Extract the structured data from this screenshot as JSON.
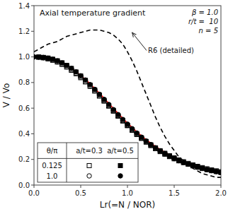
{
  "chart_data": {
    "type": "line",
    "title": "Axial temperature gradient",
    "x_label": "Lr(=N / NOR)",
    "y_label": "V / Vo",
    "xlim": [
      0.0,
      2.0
    ],
    "ylim": [
      0.0,
      1.4
    ],
    "xticks": [
      {
        "value": 0.0,
        "label": "0.0"
      },
      0.5,
      {
        "value": 1.0,
        "label": "1.0"
      },
      1.5,
      {
        "value": 2.0,
        "label": "2.0"
      }
    ],
    "yticks": [
      {
        "value": 0.0,
        "label": "0.0"
      },
      0.2,
      0.4,
      0.6,
      0.8,
      {
        "value": 1.0,
        "label": "1.0"
      },
      1.2,
      1.4
    ],
    "grid": false,
    "series": [
      {
        "type": "line",
        "color": "red",
        "line_style": "solid",
        "x": [
          0.0,
          0.05,
          0.1,
          0.15,
          0.2,
          0.25,
          0.3,
          0.35,
          0.4,
          0.45,
          0.5,
          0.55,
          0.6,
          0.65,
          0.7,
          0.75,
          0.8,
          0.85,
          0.9,
          0.95,
          1.0,
          1.05,
          1.1,
          1.15,
          1.2,
          1.25,
          1.3,
          1.35,
          1.4,
          1.45,
          1.5,
          1.55,
          1.6,
          1.65,
          1.7,
          1.75,
          1.8,
          1.85,
          1.9,
          1.95,
          2.0
        ],
        "values": [
          1.0,
          0.998,
          0.994,
          0.988,
          0.979,
          0.967,
          0.952,
          0.933,
          0.911,
          0.885,
          0.856,
          0.824,
          0.79,
          0.754,
          0.716,
          0.677,
          0.637,
          0.598,
          0.559,
          0.521,
          0.484,
          0.449,
          0.415,
          0.384,
          0.354,
          0.327,
          0.301,
          0.278,
          0.257,
          0.237,
          0.219,
          0.203,
          0.188,
          0.174,
          0.161,
          0.15,
          0.139,
          0.13,
          0.121,
          0.113,
          0.106
        ]
      },
      {
        "type": "line",
        "color": "black",
        "line_style": "dashed",
        "x": [
          0.0,
          0.05,
          0.1,
          0.15,
          0.2,
          0.25,
          0.3,
          0.35,
          0.4,
          0.45,
          0.5,
          0.55,
          0.6,
          0.65,
          0.7,
          0.75,
          0.8,
          0.85,
          0.9,
          0.95,
          1.0,
          1.05,
          1.1,
          1.15,
          1.2,
          1.25,
          1.3,
          1.35,
          1.4,
          1.45,
          1.5,
          1.55,
          1.6,
          1.65,
          1.7,
          1.75,
          1.8,
          1.85,
          1.9,
          1.95,
          2.0
        ],
        "values": [
          1.04,
          1.06,
          1.08,
          1.1,
          1.11,
          1.12,
          1.14,
          1.16,
          1.17,
          1.18,
          1.19,
          1.2,
          1.21,
          1.21,
          1.21,
          1.2,
          1.19,
          1.17,
          1.14,
          1.1,
          1.04,
          0.97,
          0.89,
          0.8,
          0.71,
          0.62,
          0.53,
          0.45,
          0.38,
          0.32,
          0.27,
          0.22,
          0.19,
          0.16,
          0.13,
          0.11,
          0.09,
          0.08,
          0.07,
          0.06,
          0.06
        ]
      },
      {
        "type": "scatter",
        "color": "black",
        "marker": "square-open",
        "x": [
          0.05,
          0.1,
          0.15,
          0.2,
          0.25,
          0.3,
          0.35,
          0.4,
          0.45,
          0.5,
          0.55,
          0.6,
          0.65,
          0.7,
          0.75,
          0.8,
          0.85,
          0.9,
          0.95,
          1.0,
          1.05,
          1.1,
          1.15,
          1.2,
          1.25,
          1.3,
          1.35,
          1.4,
          1.45,
          1.5,
          1.55,
          1.6,
          1.65,
          1.7,
          1.75,
          1.8,
          1.85,
          1.9,
          1.95,
          2.0
        ],
        "values": [
          0.998,
          0.993,
          0.985,
          0.974,
          0.96,
          0.942,
          0.921,
          0.896,
          0.869,
          0.838,
          0.805,
          0.77,
          0.733,
          0.694,
          0.655,
          0.616,
          0.577,
          0.538,
          0.501,
          0.465,
          0.43,
          0.398,
          0.368,
          0.34,
          0.314,
          0.29,
          0.268,
          0.248,
          0.229,
          0.212,
          0.196,
          0.182,
          0.169,
          0.157,
          0.146,
          0.136,
          0.127,
          0.118,
          0.111,
          0.104
        ]
      },
      {
        "type": "scatter",
        "color": "black",
        "marker": "square-filled",
        "x": [
          0.05,
          0.1,
          0.15,
          0.2,
          0.25,
          0.3,
          0.35,
          0.4,
          0.45,
          0.5,
          0.55,
          0.6,
          0.65,
          0.7,
          0.75,
          0.8,
          0.85,
          0.9,
          0.95,
          1.0,
          1.05,
          1.1,
          1.15,
          1.2,
          1.25,
          1.3,
          1.35,
          1.4,
          1.45,
          1.5,
          1.55,
          1.6,
          1.65,
          1.7,
          1.75,
          1.8,
          1.85,
          1.9,
          1.95,
          2.0
        ],
        "values": [
          0.999,
          0.996,
          0.991,
          0.982,
          0.97,
          0.954,
          0.934,
          0.91,
          0.882,
          0.851,
          0.817,
          0.78,
          0.742,
          0.702,
          0.661,
          0.62,
          0.58,
          0.54,
          0.501,
          0.464,
          0.428,
          0.395,
          0.364,
          0.335,
          0.308,
          0.284,
          0.261,
          0.241,
          0.222,
          0.205,
          0.189,
          0.175,
          0.162,
          0.15,
          0.139,
          0.129,
          0.12,
          0.112,
          0.105,
          0.098
        ]
      },
      {
        "type": "scatter",
        "color": "black",
        "marker": "circle-open",
        "x": [
          0.0,
          0.05,
          0.1,
          0.15,
          0.2,
          0.25,
          0.3,
          0.35,
          0.4,
          0.45,
          0.5,
          0.55,
          0.6,
          0.65,
          0.7,
          0.75,
          0.8,
          0.85,
          0.9,
          0.95,
          1.0,
          1.05,
          1.1,
          1.15,
          1.2,
          1.25,
          1.3,
          1.35,
          1.4,
          1.45,
          1.5,
          1.55,
          1.6,
          1.65,
          1.7,
          1.75,
          1.8,
          1.85,
          1.9,
          1.95,
          2.0
        ],
        "values": [
          1.0,
          0.998,
          0.993,
          0.986,
          0.975,
          0.961,
          0.944,
          0.924,
          0.9,
          0.873,
          0.843,
          0.81,
          0.775,
          0.739,
          0.701,
          0.662,
          0.622,
          0.583,
          0.544,
          0.506,
          0.469,
          0.434,
          0.4,
          0.369,
          0.339,
          0.312,
          0.287,
          0.264,
          0.243,
          0.224,
          0.206,
          0.19,
          0.176,
          0.163,
          0.151,
          0.14,
          0.13,
          0.121,
          0.113,
          0.105,
          0.099
        ]
      },
      {
        "type": "scatter",
        "color": "black",
        "marker": "circle-filled",
        "x": [
          0.0,
          0.05,
          0.1,
          0.15,
          0.2,
          0.25,
          0.3,
          0.35,
          0.4,
          0.45,
          0.5,
          0.55,
          0.6,
          0.65,
          0.7,
          0.75,
          0.8,
          0.85,
          0.9,
          0.95,
          1.0,
          1.05,
          1.1,
          1.15,
          1.2,
          1.25,
          1.3,
          1.35,
          1.4,
          1.45,
          1.5,
          1.55,
          1.6,
          1.65,
          1.7,
          1.75,
          1.8,
          1.85,
          1.9,
          1.95,
          2.0
        ],
        "values": [
          1.0,
          0.999,
          0.996,
          0.99,
          0.981,
          0.969,
          0.953,
          0.933,
          0.91,
          0.883,
          0.853,
          0.82,
          0.784,
          0.747,
          0.708,
          0.669,
          0.629,
          0.589,
          0.55,
          0.512,
          0.475,
          0.44,
          0.406,
          0.374,
          0.344,
          0.316,
          0.291,
          0.267,
          0.246,
          0.226,
          0.208,
          0.192,
          0.178,
          0.164,
          0.152,
          0.141,
          0.131,
          0.122,
          0.113,
          0.106,
          0.099
        ]
      }
    ],
    "annotations": [
      {
        "text": "β = 1.0"
      },
      {
        "text": "r/t =  10"
      },
      {
        "text": "n = 5"
      },
      {
        "text": "R6 (detailed)",
        "x": 1.05,
        "y": 1.19,
        "text_x": 1.22,
        "text_y": 1.05
      }
    ],
    "legend_table": {
      "columns": [
        "θ/π",
        "a/t=0.3",
        "a/t=0.5"
      ],
      "rows": [
        {
          "label": "0.125",
          "series": [
            2,
            3
          ]
        },
        {
          "label": "1.0",
          "series": [
            4,
            5
          ]
        }
      ]
    }
  }
}
